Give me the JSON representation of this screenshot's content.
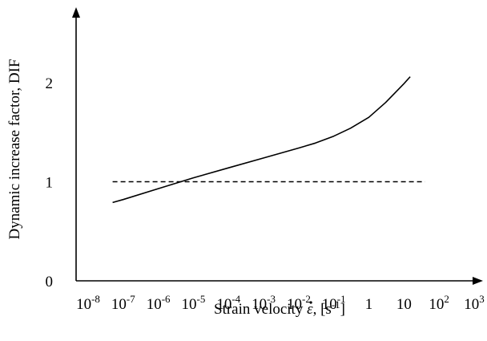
{
  "chart_data": {
    "type": "line",
    "xscale": "log",
    "xlim": [
      1e-08,
      1000.0
    ],
    "ylim": [
      0,
      2.5
    ],
    "xlabel": {
      "prefix": "Strain velocity ",
      "symbol": "ε",
      "unit_open": ", [s",
      "unit_exp": "-1",
      "unit_close": "]"
    },
    "ylabel": "Dynamic increase  factor, DIF",
    "xticks": [
      {
        "value": 1e-08,
        "base": "10",
        "exp": "-8"
      },
      {
        "value": 1e-07,
        "base": "10",
        "exp": "-7"
      },
      {
        "value": 1e-06,
        "base": "10",
        "exp": "-6"
      },
      {
        "value": 1e-05,
        "base": "10",
        "exp": "-5"
      },
      {
        "value": 0.0001,
        "base": "10",
        "exp": "-4"
      },
      {
        "value": 0.001,
        "base": "10",
        "exp": "-3"
      },
      {
        "value": 0.01,
        "base": "10",
        "exp": "-2"
      },
      {
        "value": 0.1,
        "base": "10",
        "exp": "-1"
      },
      {
        "value": 1,
        "base": "1",
        "exp": ""
      },
      {
        "value": 10,
        "base": "10",
        "exp": ""
      },
      {
        "value": 100,
        "base": "10",
        "exp": "2"
      },
      {
        "value": 1000,
        "base": "10",
        "exp": "3"
      }
    ],
    "yticks": [
      {
        "value": 0,
        "label": "0"
      },
      {
        "value": 1,
        "label": "1"
      },
      {
        "value": 2,
        "label": "2"
      }
    ],
    "series": [
      {
        "style": "solid",
        "points": [
          [
            5e-08,
            0.79
          ],
          [
            1e-07,
            0.82
          ],
          [
            1e-06,
            0.93
          ],
          [
            1e-05,
            1.04
          ],
          [
            0.0001,
            1.14
          ],
          [
            0.001,
            1.24
          ],
          [
            0.01,
            1.34
          ],
          [
            0.03,
            1.39
          ],
          [
            0.1,
            1.46
          ],
          [
            0.3,
            1.54
          ],
          [
            1,
            1.65
          ],
          [
            3,
            1.8
          ],
          [
            10,
            1.99
          ],
          [
            15,
            2.06
          ]
        ]
      },
      {
        "style": "dashed",
        "points": [
          [
            5e-08,
            1.0
          ],
          [
            40,
            1.0
          ]
        ]
      }
    ]
  }
}
